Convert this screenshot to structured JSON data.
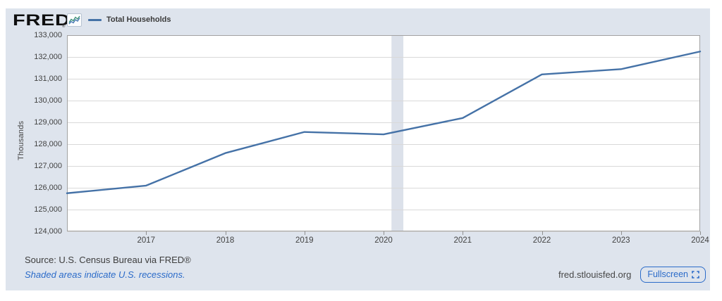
{
  "header": {
    "logo_text": "FRED",
    "logo_mark": "®",
    "legend": {
      "label": "Total Households",
      "color": "#4572a7"
    }
  },
  "chart_data": {
    "type": "line",
    "title": "Total Households",
    "x": [
      2016,
      2017,
      2018,
      2019,
      2020,
      2021,
      2022,
      2023,
      2024
    ],
    "series": [
      {
        "name": "Total Households",
        "color": "#4572a7",
        "values": [
          125750,
          126100,
          127590,
          128560,
          128450,
          129200,
          131200,
          131440,
          132250
        ]
      }
    ],
    "xlabel": "",
    "ylabel": "Thousands",
    "xlim": [
      2016,
      2024
    ],
    "ylim": [
      124000,
      133000
    ],
    "ytick_step": 1000,
    "xticks": [
      2017,
      2018,
      2019,
      2020,
      2021,
      2022,
      2023,
      2024
    ],
    "grid": true,
    "legend_position": "top-left",
    "recession_bands": [
      {
        "start": 2020.1,
        "end": 2020.25
      }
    ],
    "recession_band_color": "#dce1ea",
    "background_color": "#dee4ed",
    "plot_background": "#ffffff",
    "gridline_color": "#d9d9d9",
    "border_color": "#a2a2a2"
  },
  "footer": {
    "source": "Source: U.S. Census Bureau via FRED®",
    "recession_note": "Shaded areas indicate U.S. recessions.",
    "site": "fred.stlouisfed.org",
    "fullscreen_label": "Fullscreen"
  }
}
